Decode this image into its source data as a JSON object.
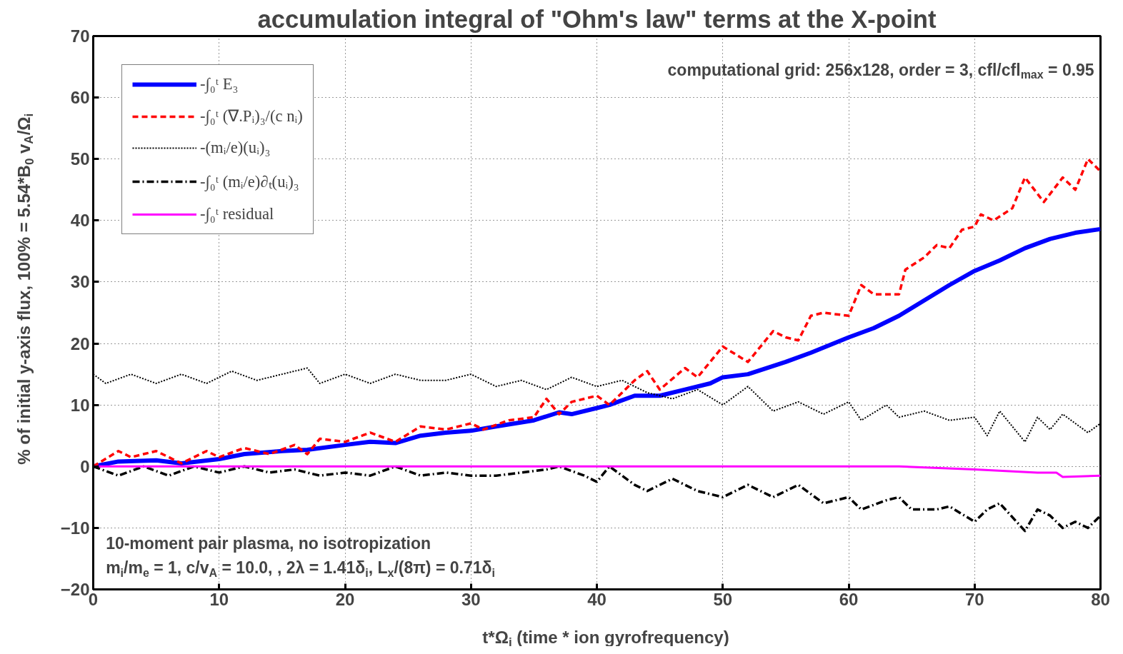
{
  "chart_data": {
    "type": "line",
    "title": "accumulation integral of \"Ohm's law\" terms at the X-point",
    "xlabel": "t*Ω$_{i}$ (time * ion gyrofrequency)",
    "ylabel": "% of initial y-axis flux, 100% = 5.54*B$_{0}$ v$_{A}$/Ω$_{i}$",
    "xlim": [
      0,
      80
    ],
    "ylim": [
      -20,
      70
    ],
    "xticks": [
      0,
      10,
      20,
      30,
      40,
      50,
      60,
      70,
      80
    ],
    "yticks": [
      -20,
      -10,
      0,
      10,
      20,
      30,
      40,
      50,
      60,
      70
    ],
    "grid": true,
    "legend": "top left",
    "annotations": [
      "computational grid: 256x128, order = 3, cfl/cfl$_{max}$ = 0.95",
      "10-moment pair plasma, no isotropization",
      "m$_{i}$/m$_{e}$ = 1, c/v$_{A}$ = 10.0, , 2λ = 1.41δ$_{i}$, L$_{x}$/(8π) = 0.71δ$_{i}$"
    ],
    "series": [
      {
        "name": "-∫₀ᵗ E₃",
        "color": "#0000ff",
        "line_style": "solid",
        "x": [
          0,
          2,
          5,
          7,
          10,
          12,
          15,
          17,
          20,
          22,
          24,
          26,
          28,
          30,
          32,
          35,
          37,
          38,
          40,
          41,
          43,
          45,
          47,
          49,
          50,
          52,
          55,
          57,
          60,
          62,
          64,
          66,
          68,
          70,
          72,
          74,
          76,
          78,
          80
        ],
        "values": [
          0,
          0.8,
          1,
          0.5,
          1.2,
          2,
          2.5,
          2.7,
          3.5,
          4,
          3.8,
          5,
          5.5,
          5.8,
          6.5,
          7.5,
          8.8,
          8.5,
          9.5,
          10,
          11.5,
          11.5,
          12.5,
          13.5,
          14.5,
          15,
          17,
          18.5,
          21,
          22.5,
          24.5,
          27,
          29.5,
          31.8,
          33.5,
          35.5,
          37,
          38,
          38.6
        ]
      },
      {
        "name": "-∫₀ᵗ (∇.Pᵢ)₃/(c nᵢ)",
        "color": "#ff0000",
        "line_style": "dashed",
        "x": [
          0,
          2,
          3,
          5,
          7,
          9,
          10,
          12,
          14,
          16,
          17,
          18,
          20,
          22,
          24,
          26,
          28,
          30,
          31,
          33,
          35,
          36,
          37,
          38,
          40,
          41,
          43,
          44,
          45,
          47,
          48,
          50,
          52,
          54,
          55,
          56,
          57,
          58,
          60,
          61,
          62,
          64,
          64.5,
          66,
          67,
          68,
          69,
          70,
          70.5,
          71.5,
          73,
          74,
          75.5,
          77,
          78,
          79,
          80
        ],
        "values": [
          0,
          2.5,
          1.5,
          2.5,
          0.5,
          2.5,
          1.5,
          3,
          2,
          3.5,
          2,
          4.5,
          4,
          5.5,
          4,
          6.5,
          6,
          7,
          6,
          7.5,
          8,
          11,
          8.5,
          10.5,
          11.5,
          10,
          14,
          15.5,
          12.5,
          16,
          14.5,
          19.5,
          17,
          22,
          21,
          20.5,
          24.5,
          25,
          24.5,
          29.5,
          28,
          28,
          32,
          34,
          36,
          35.5,
          38.5,
          39,
          41,
          40,
          42,
          47,
          43,
          47,
          45,
          50,
          48
        ]
      },
      {
        "name": "-(mᵢ/e)(uᵢ)₃",
        "color": "#000000",
        "line_style": "dotted",
        "x": [
          0,
          1,
          3,
          5,
          7,
          9,
          11,
          13,
          15,
          17,
          18,
          20,
          22,
          24,
          26,
          28,
          30,
          32,
          34,
          36,
          38,
          40,
          42,
          44,
          46,
          48,
          50,
          52,
          54,
          56,
          58,
          60,
          61,
          63,
          64,
          66,
          68,
          70,
          71,
          72,
          74,
          75,
          76,
          77,
          79,
          80
        ],
        "values": [
          15,
          13.5,
          15,
          13.5,
          15,
          13.5,
          15.5,
          14,
          15,
          16,
          13.5,
          15,
          13.5,
          15,
          14,
          14,
          15,
          13,
          14,
          12.5,
          14.5,
          13,
          14,
          12,
          11,
          12.5,
          10,
          13,
          9,
          10.5,
          8.5,
          10.5,
          7.5,
          10,
          8,
          9,
          7.5,
          8,
          5,
          9,
          4,
          8,
          6,
          8.5,
          5.5,
          7
        ]
      },
      {
        "name": "-∫₀ᵗ (mᵢ/e)∂ₜ(uᵢ)₃",
        "color": "#000000",
        "line_style": "dashdot",
        "x": [
          0,
          2,
          4,
          6,
          8,
          10,
          12,
          14,
          16,
          18,
          20,
          22,
          24,
          26,
          28,
          30,
          32,
          34,
          36,
          37,
          39,
          40,
          41,
          43,
          44,
          46,
          48,
          50,
          52,
          54,
          56,
          58,
          60,
          61,
          63,
          64,
          65,
          67,
          68,
          70,
          71,
          72,
          74,
          75,
          76,
          77,
          78,
          79,
          80
        ],
        "values": [
          0,
          -1.5,
          0,
          -1.5,
          0,
          -1,
          0,
          -1,
          -0.5,
          -1.5,
          -1,
          -1.5,
          0,
          -1.5,
          -1,
          -1.5,
          -1.5,
          -1,
          -0.5,
          0,
          -1.5,
          -2.5,
          0,
          -3,
          -4,
          -2,
          -4,
          -5,
          -3,
          -5,
          -3,
          -6,
          -5,
          -7,
          -5.5,
          -5,
          -7,
          -7,
          -6.5,
          -9,
          -7,
          -6,
          -10.5,
          -7,
          -8,
          -10,
          -9,
          -10,
          -8
        ]
      },
      {
        "name": "-∫₀ᵗ residual",
        "color": "#ff00ff",
        "line_style": "solid",
        "x": [
          0,
          20,
          40,
          60,
          64,
          70,
          75,
          76.5,
          77,
          80
        ],
        "values": [
          0,
          0,
          0,
          0,
          0,
          -0.5,
          -1,
          -1,
          -1.7,
          -1.5
        ]
      }
    ]
  }
}
